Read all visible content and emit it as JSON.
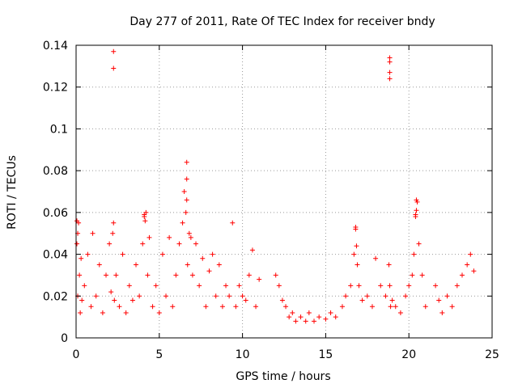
{
  "chart_data": {
    "type": "scatter",
    "title": "Day 277 of 2011, Rate Of TEC Index for receiver bndy",
    "xlabel": "GPS time / hours",
    "ylabel": "ROTI / TECUs",
    "xlim": [
      0,
      25
    ],
    "ylim": [
      0,
      0.14
    ],
    "x_ticks": [
      0,
      5,
      10,
      15,
      20,
      25
    ],
    "x_tick_labels": [
      "0",
      "5",
      "10",
      "15",
      "20",
      "25"
    ],
    "y_ticks": [
      0,
      0.02,
      0.04,
      0.06,
      0.08,
      0.1,
      0.12,
      0.14
    ],
    "y_tick_labels": [
      "0",
      "0.02",
      "0.04",
      "0.06",
      "0.08",
      "0.1",
      "0.12",
      "0.14"
    ],
    "grid": true,
    "marker": "+",
    "color": "#ff0000",
    "series": [
      {
        "name": "ROTI",
        "x": [
          0.05,
          0.1,
          0.15,
          0.2,
          0.25,
          0.3,
          0.35,
          0.5,
          0.7,
          0.9,
          1.0,
          1.2,
          1.4,
          1.6,
          1.8,
          2.0,
          2.1,
          2.2,
          2.25,
          2.3,
          2.4,
          2.6,
          2.8,
          3.0,
          3.2,
          3.4,
          3.6,
          3.8,
          4.0,
          4.1,
          4.2,
          4.3,
          4.4,
          4.6,
          4.8,
          5.0,
          5.2,
          5.4,
          5.6,
          5.8,
          6.0,
          6.2,
          6.4,
          6.5,
          6.6,
          6.7,
          6.8,
          6.9,
          7.0,
          7.2,
          7.4,
          7.6,
          7.8,
          8.0,
          8.2,
          8.4,
          8.6,
          8.8,
          9.0,
          9.2,
          9.4,
          9.6,
          9.8,
          10.0,
          10.2,
          10.4,
          10.6,
          10.8,
          11.0,
          12.0,
          12.2,
          12.4,
          12.6,
          12.8,
          13.0,
          13.2,
          13.5,
          13.8,
          14.0,
          14.3,
          14.6,
          15.0,
          15.3,
          15.6,
          16.0,
          16.2,
          16.5,
          16.7,
          16.8,
          16.9,
          17.0,
          17.2,
          17.5,
          17.8,
          18.0,
          18.3,
          18.6,
          18.8,
          18.85,
          18.9,
          19.0,
          19.2,
          19.5,
          19.8,
          20.0,
          20.2,
          20.3,
          20.4,
          20.5,
          20.6,
          20.8,
          21.0,
          21.6,
          21.8,
          22.0,
          22.3,
          22.6,
          22.9,
          23.2,
          23.5,
          23.7,
          23.9,
          2.25,
          2.25,
          18.85,
          18.85,
          18.85,
          18.85,
          6.65,
          6.65,
          6.65,
          20.45,
          20.45,
          20.4,
          4.1,
          4.15,
          0.05,
          0.1,
          16.8,
          16.85
        ],
        "values": [
          0.045,
          0.02,
          0.055,
          0.03,
          0.012,
          0.038,
          0.018,
          0.025,
          0.04,
          0.015,
          0.05,
          0.02,
          0.035,
          0.012,
          0.03,
          0.045,
          0.022,
          0.05,
          0.055,
          0.018,
          0.03,
          0.015,
          0.04,
          0.012,
          0.025,
          0.018,
          0.035,
          0.02,
          0.045,
          0.058,
          0.06,
          0.03,
          0.048,
          0.015,
          0.025,
          0.012,
          0.04,
          0.02,
          0.048,
          0.015,
          0.03,
          0.045,
          0.055,
          0.07,
          0.06,
          0.035,
          0.05,
          0.048,
          0.03,
          0.045,
          0.025,
          0.038,
          0.015,
          0.032,
          0.04,
          0.02,
          0.035,
          0.015,
          0.025,
          0.02,
          0.055,
          0.015,
          0.025,
          0.02,
          0.018,
          0.03,
          0.042,
          0.015,
          0.028,
          0.03,
          0.025,
          0.018,
          0.015,
          0.01,
          0.012,
          0.008,
          0.01,
          0.008,
          0.012,
          0.008,
          0.01,
          0.009,
          0.012,
          0.01,
          0.015,
          0.02,
          0.025,
          0.04,
          0.052,
          0.035,
          0.025,
          0.018,
          0.02,
          0.015,
          0.038,
          0.025,
          0.02,
          0.035,
          0.025,
          0.015,
          0.018,
          0.015,
          0.012,
          0.02,
          0.025,
          0.03,
          0.04,
          0.058,
          0.065,
          0.045,
          0.03,
          0.015,
          0.025,
          0.018,
          0.012,
          0.02,
          0.015,
          0.025,
          0.03,
          0.035,
          0.04,
          0.032,
          0.137,
          0.129,
          0.134,
          0.132,
          0.127,
          0.124,
          0.084,
          0.076,
          0.066,
          0.066,
          0.061,
          0.059,
          0.059,
          0.056,
          0.056,
          0.05,
          0.053,
          0.044
        ]
      }
    ]
  }
}
